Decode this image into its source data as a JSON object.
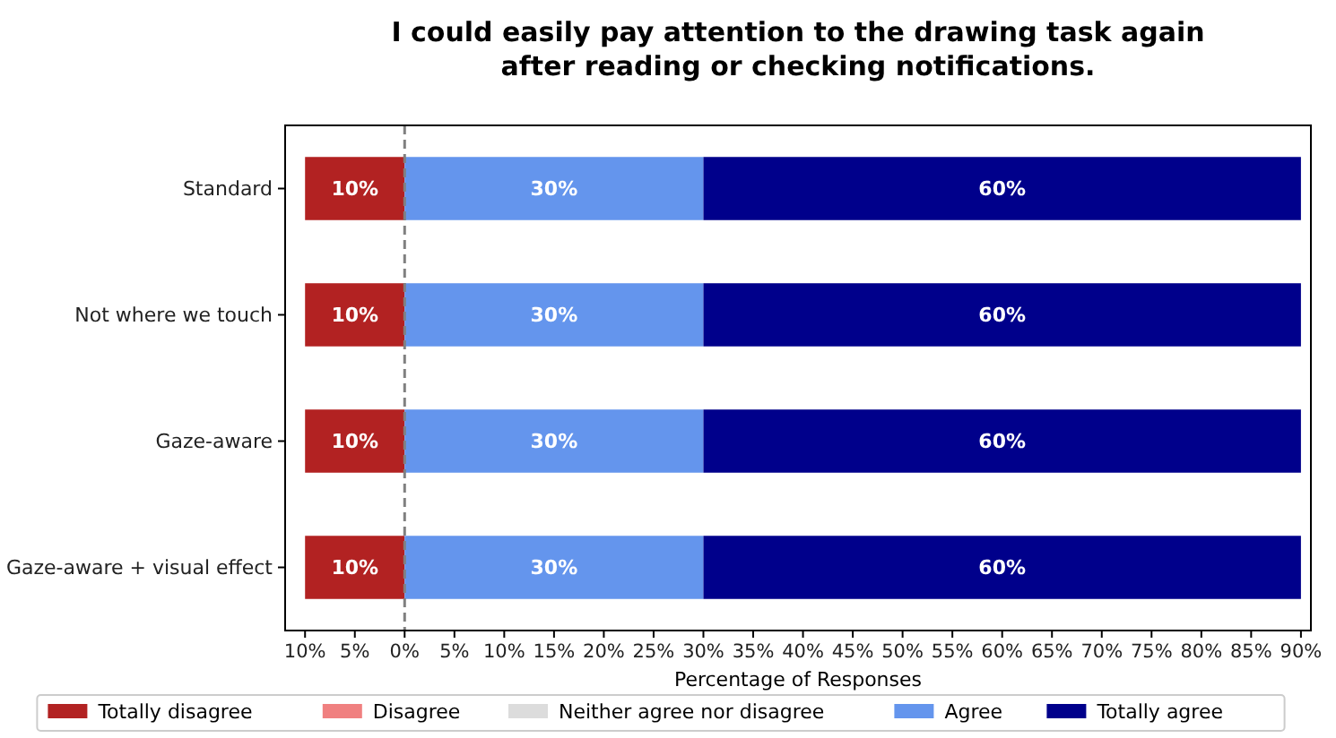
{
  "chart_data": {
    "type": "bar",
    "orientation": "horizontal",
    "title": "I could easily pay attention to the drawing task again\nafter reading or checking notifications.",
    "xlabel": "Percentage of Responses",
    "categories": [
      "Standard",
      "Not where we touch",
      "Gaze-aware",
      "Gaze-aware + visual effect"
    ],
    "series": [
      {
        "name": "Totally disagree",
        "color": "#b22222",
        "values": [
          10,
          10,
          10,
          10
        ],
        "base": [
          -10,
          -10,
          -10,
          -10
        ],
        "value_labels": [
          "10%",
          "10%",
          "10%",
          "10%"
        ]
      },
      {
        "name": "Disagree",
        "color": "#f08080",
        "values": [
          null,
          null,
          null,
          null
        ]
      },
      {
        "name": "Neither agree nor disagree",
        "color": "#dcdcdc",
        "values": [
          null,
          null,
          null,
          null
        ]
      },
      {
        "name": "Agree",
        "color": "#6495ed",
        "values": [
          30,
          30,
          30,
          30
        ],
        "base": [
          0,
          0,
          0,
          0
        ],
        "value_labels": [
          "30%",
          "30%",
          "30%",
          "30%"
        ]
      },
      {
        "name": "Totally agree",
        "color": "#00008b",
        "values": [
          60,
          60,
          60,
          60
        ],
        "base": [
          30,
          30,
          30,
          30
        ],
        "value_labels": [
          "60%",
          "60%",
          "60%",
          "60%"
        ]
      }
    ],
    "xlim": [
      -12,
      91
    ],
    "xticks": [
      {
        "value": -10,
        "label": "10%"
      },
      {
        "value": -5,
        "label": "5%"
      },
      {
        "value": 0,
        "label": "0%"
      },
      {
        "value": 5,
        "label": "5%"
      },
      {
        "value": 10,
        "label": "10%"
      },
      {
        "value": 15,
        "label": "15%"
      },
      {
        "value": 20,
        "label": "20%"
      },
      {
        "value": 25,
        "label": "25%"
      },
      {
        "value": 30,
        "label": "30%"
      },
      {
        "value": 35,
        "label": "35%"
      },
      {
        "value": 40,
        "label": "40%"
      },
      {
        "value": 45,
        "label": "45%"
      },
      {
        "value": 50,
        "label": "50%"
      },
      {
        "value": 55,
        "label": "55%"
      },
      {
        "value": 60,
        "label": "60%"
      },
      {
        "value": 65,
        "label": "65%"
      },
      {
        "value": 70,
        "label": "70%"
      },
      {
        "value": 75,
        "label": "75%"
      },
      {
        "value": 80,
        "label": "80%"
      },
      {
        "value": 85,
        "label": "85%"
      },
      {
        "value": 90,
        "label": "90%"
      }
    ],
    "ref_lines": [
      {
        "axis": "x",
        "value": 0,
        "color": "#808080",
        "line_style": "dashed"
      }
    ],
    "legend": "bottom",
    "grid": false
  }
}
